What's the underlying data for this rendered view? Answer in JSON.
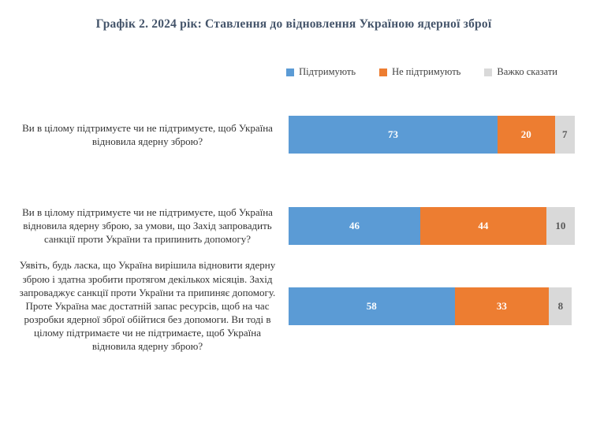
{
  "chart_data": {
    "type": "bar",
    "orientation": "horizontal-stacked",
    "title": "Графік 2. 2024 рік: Ставлення до відновлення Україною ядерної зброї",
    "title_color": "#44546A",
    "legend_position": "top",
    "grid": false,
    "xlim": [
      0,
      100
    ],
    "categories": [
      "Ви в цілому підтримуєте чи не підтримуєте, щоб Україна відновила ядерну зброю?",
      "Ви в цілому підтримуєте чи не підтримуєте, щоб Україна відновила ядерну зброю, за умови, що Захід запровадить санкції проти України та припинить допомогу?",
      "Уявіть, будь ласка, що Україна вирішила відновити ядерну зброю і здатна зробити протягом декількох місяців. Захід запроваджує санкції проти України та припиняє допомогу. Проте Україна має достатній запас ресурсів, щоб на час розробки ядерної зброї обійтися без допомоги. Ви тоді в цілому підтримаєте чи не підтримаєте, щоб Україна відновила ядерну зброю?"
    ],
    "series": [
      {
        "name": "Підтримують",
        "color": "#5B9BD5",
        "label_color": "#FFFFFF",
        "values": [
          73,
          46,
          58
        ]
      },
      {
        "name": "Не підтримують",
        "color": "#ED7D31",
        "label_color": "#FFFFFF",
        "values": [
          20,
          44,
          33
        ]
      },
      {
        "name": "Важко сказати",
        "color": "#D9D9D9",
        "label_color": "#595959",
        "values": [
          7,
          10,
          8
        ]
      }
    ]
  }
}
